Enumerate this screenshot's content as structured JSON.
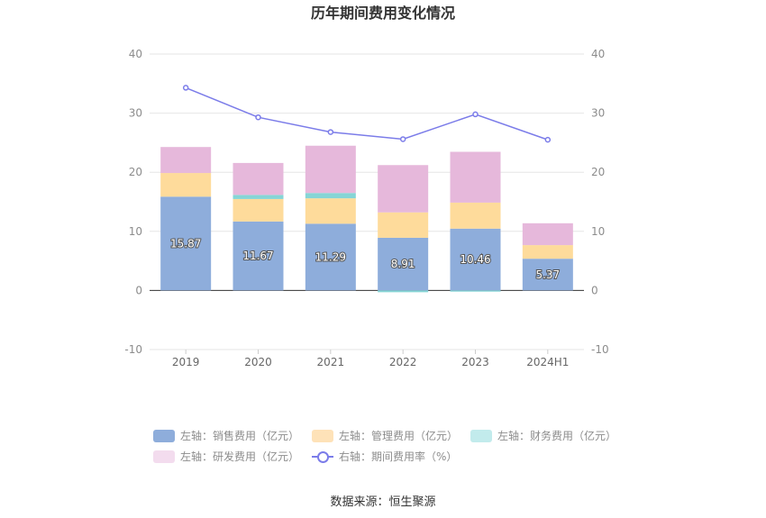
{
  "chart_data": {
    "type": "bar",
    "title": "历年期间费用变化情况",
    "categories": [
      "2019",
      "2020",
      "2021",
      "2022",
      "2023",
      "2024H1"
    ],
    "stacked": true,
    "series": [
      {
        "name": "左轴：销售费用（亿元）",
        "axis": "left",
        "color": "#8eaddb",
        "values": [
          15.87,
          11.67,
          11.29,
          8.91,
          10.46,
          5.37
        ],
        "labels": [
          "15.87",
          "11.67",
          "11.29",
          "8.91",
          "10.46",
          "5.37"
        ]
      },
      {
        "name": "左轴：管理费用（亿元）",
        "axis": "left",
        "color": "#fedb9b",
        "values": [
          4.0,
          3.8,
          4.3,
          4.3,
          4.4,
          2.3
        ]
      },
      {
        "name": "左轴：财务费用（亿元）",
        "axis": "left",
        "color": "#86d5d6",
        "values": [
          0.0,
          0.7,
          0.9,
          -0.3,
          -0.2,
          0.0
        ]
      },
      {
        "name": "左轴：研发费用（亿元）",
        "axis": "left",
        "color": "#e6b8db",
        "values": [
          4.4,
          5.4,
          8.0,
          8.0,
          8.6,
          3.7
        ]
      }
    ],
    "line": {
      "name": "右轴：期间费用率（%）",
      "axis": "right",
      "color": "#7b7ce9",
      "values": [
        34.3,
        29.3,
        26.8,
        25.6,
        29.8,
        25.5
      ]
    },
    "ylim_left": [
      -10,
      40
    ],
    "ylim_right": [
      -10,
      40
    ],
    "yticks": [
      -10,
      0,
      10,
      20,
      30,
      40
    ],
    "legend_position": "bottom",
    "grid": true
  },
  "legend_swatches": [
    {
      "color": "#8eaddb"
    },
    {
      "color": "#fee2b8"
    },
    {
      "color": "#c2ebec"
    },
    {
      "color": "#f3dcee"
    }
  ],
  "source": "数据来源：恒生聚源"
}
